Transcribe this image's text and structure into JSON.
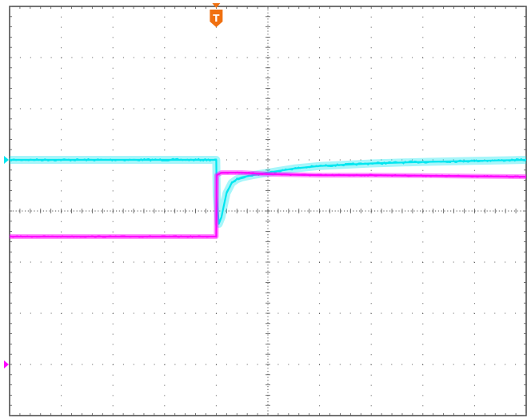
{
  "chart_data": {
    "type": "line",
    "grid": true,
    "divisions": {
      "x": 10,
      "y": 8
    },
    "xlim": [
      -5,
      5
    ],
    "ylim": [
      -4,
      4
    ],
    "trigger": {
      "label": "T",
      "x": -1
    },
    "series": [
      {
        "color": "#00e6f0",
        "marker_level": 1,
        "x": [
          -5,
          -1,
          -0.99,
          -0.95,
          -0.9,
          -0.85,
          -0.8,
          -0.7,
          -0.6,
          -0.5,
          -0.3,
          0,
          0.5,
          1,
          2,
          3,
          4,
          5
        ],
        "y": [
          1.0,
          1.0,
          0.3,
          -0.25,
          -0.12,
          0.12,
          0.35,
          0.55,
          0.62,
          0.66,
          0.7,
          0.75,
          0.83,
          0.88,
          0.93,
          0.96,
          0.98,
          1.0
        ]
      },
      {
        "color": "#ff00ff",
        "marker_level": -3,
        "x": [
          -5,
          -1,
          -0.99,
          -0.9,
          -0.5,
          0,
          1,
          2,
          3,
          4,
          5
        ],
        "y": [
          -0.5,
          -0.5,
          0.7,
          0.75,
          0.75,
          0.72,
          0.7,
          0.7,
          0.69,
          0.68,
          0.67
        ]
      }
    ]
  }
}
